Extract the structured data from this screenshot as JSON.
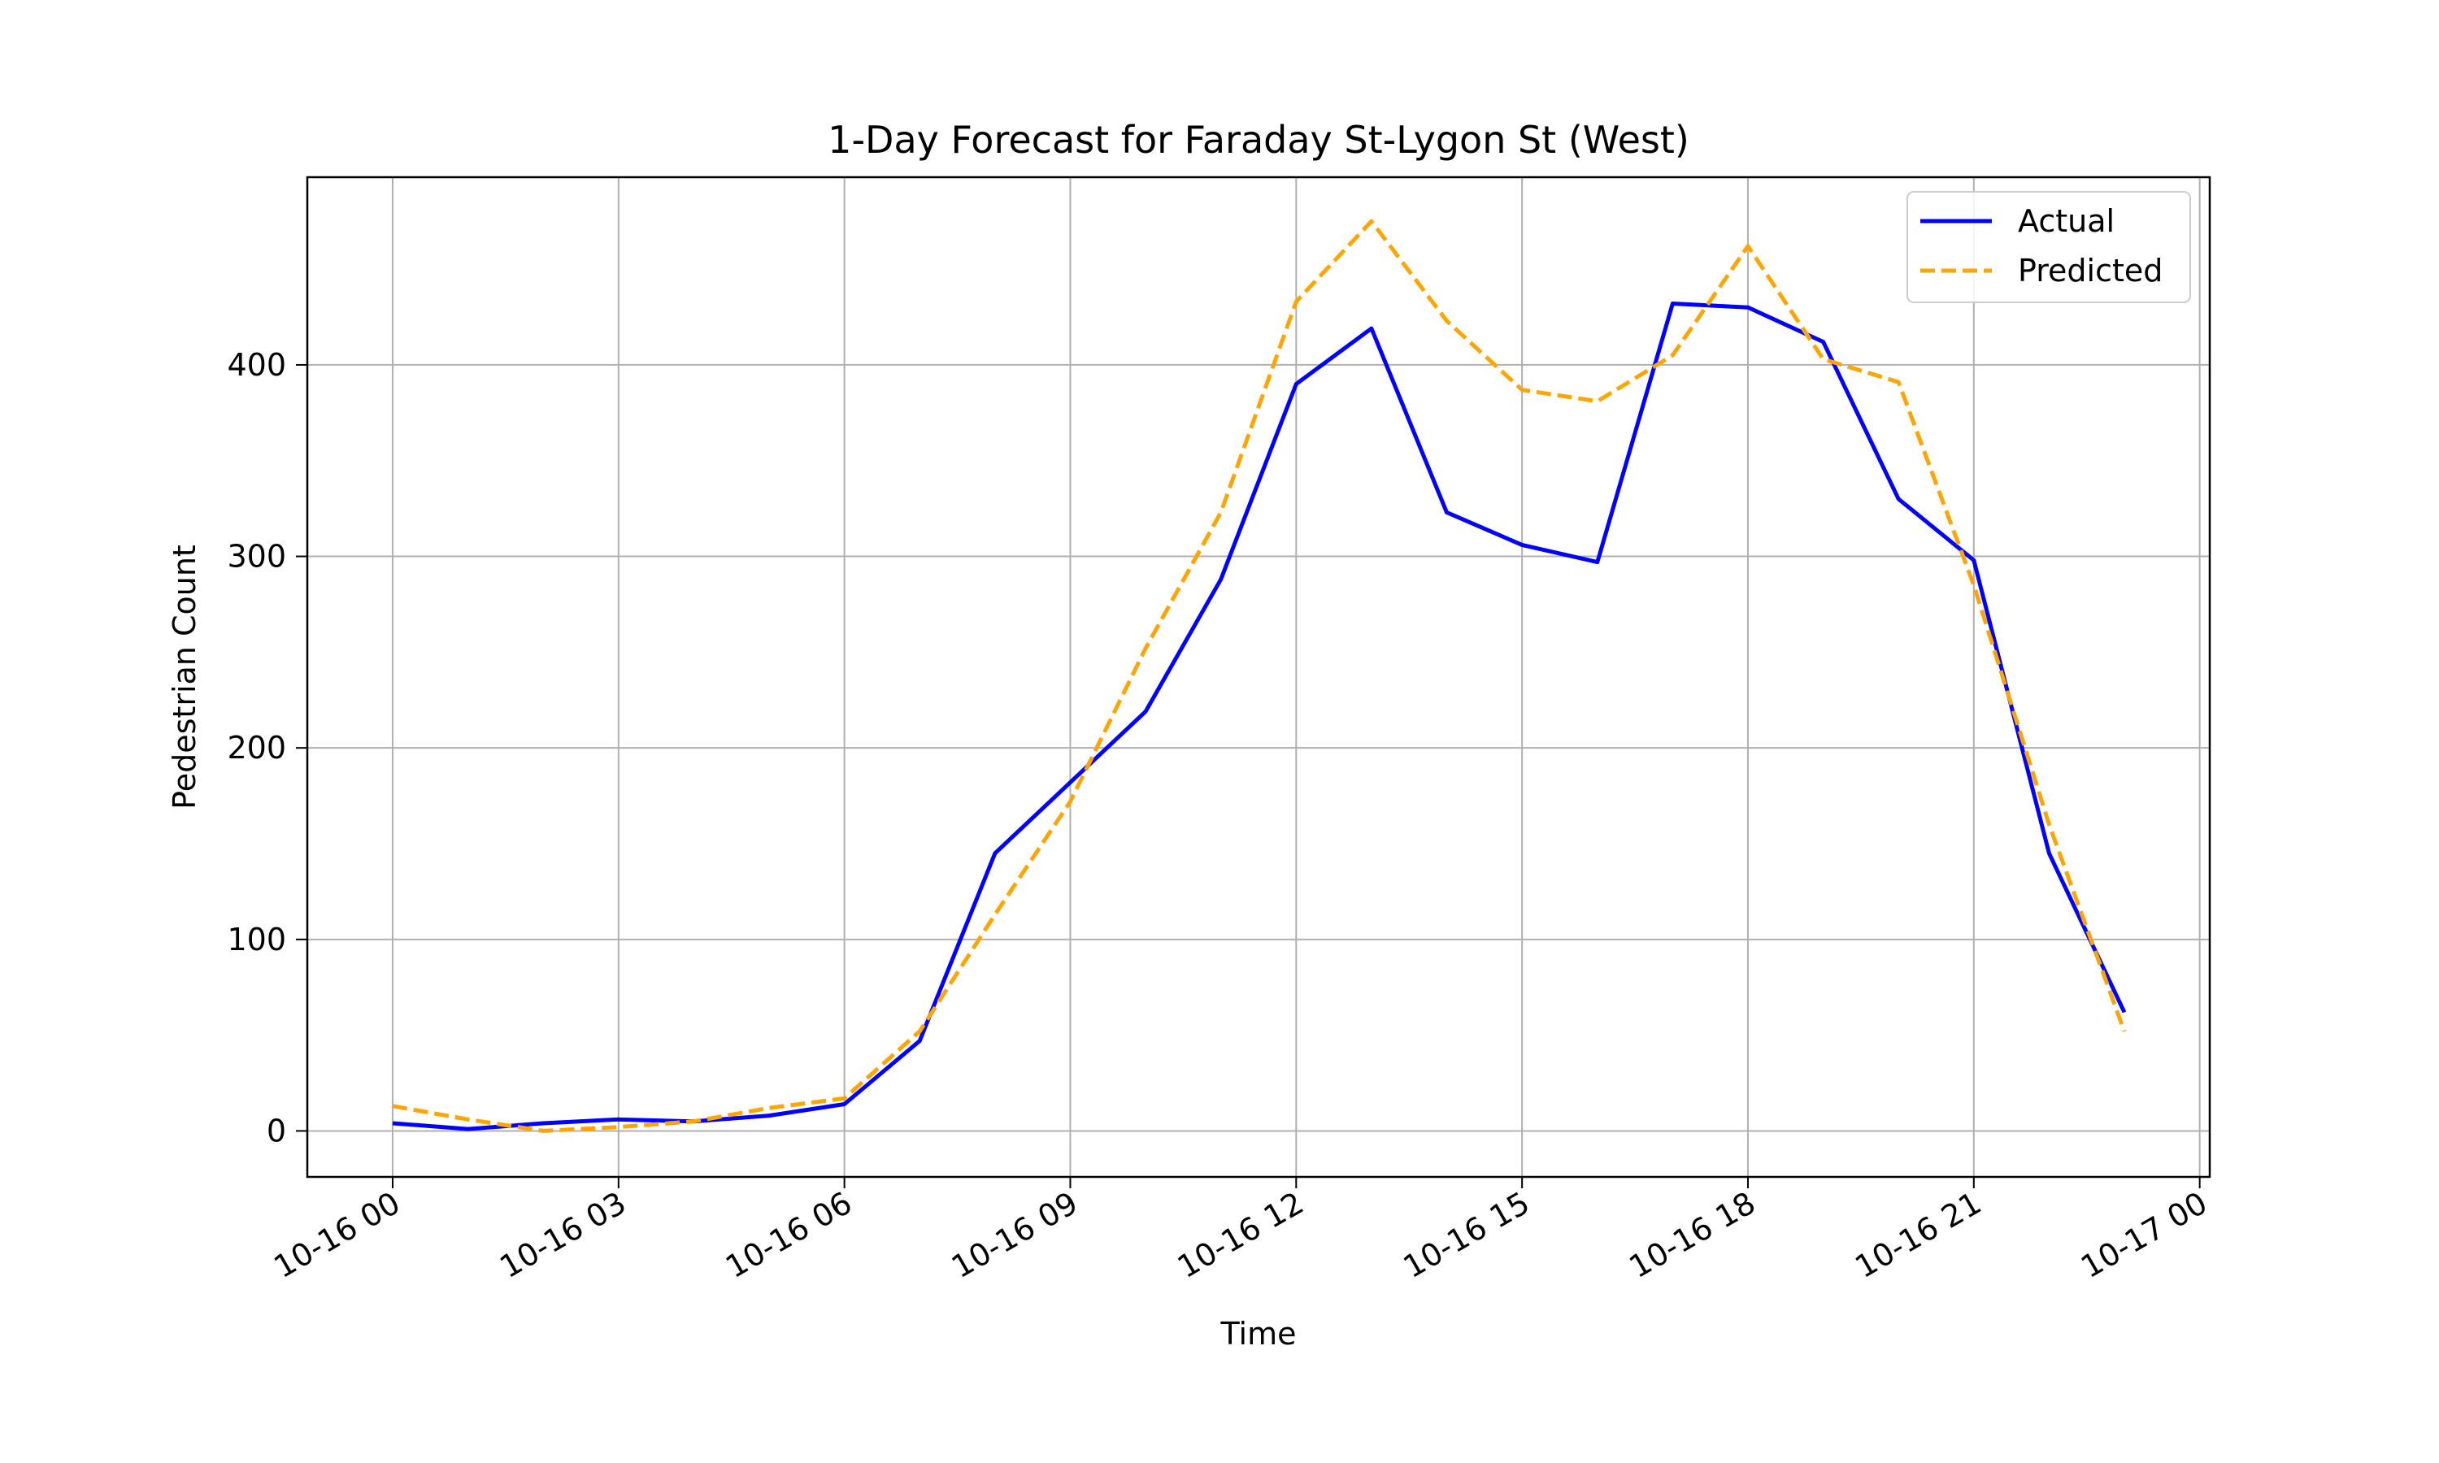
{
  "chart_data": {
    "type": "line",
    "title": "1-Day Forecast for Faraday St-Lygon St (West)",
    "xlabel": "Time",
    "ylabel": "Pedestrian Count",
    "x": [
      "10-16 00",
      "10-16 01",
      "10-16 02",
      "10-16 03",
      "10-16 04",
      "10-16 05",
      "10-16 06",
      "10-16 07",
      "10-16 08",
      "10-16 09",
      "10-16 10",
      "10-16 11",
      "10-16 12",
      "10-16 13",
      "10-16 14",
      "10-16 15",
      "10-16 16",
      "10-16 17",
      "10-16 18",
      "10-16 19",
      "10-16 20",
      "10-16 21",
      "10-16 22",
      "10-16 23"
    ],
    "xlim": [
      "10-15 22:52",
      "10-17 00:08"
    ],
    "ylim": [
      -24,
      498
    ],
    "x_ticks": [
      "10-16 00",
      "10-16 03",
      "10-16 06",
      "10-16 09",
      "10-16 12",
      "10-16 15",
      "10-16 18",
      "10-16 21",
      "10-17 00"
    ],
    "y_ticks": [
      0,
      100,
      200,
      300,
      400
    ],
    "series": [
      {
        "name": "Actual",
        "color": "#0000ff",
        "style": "solid",
        "values": [
          4,
          1,
          4,
          6,
          5,
          8,
          14,
          47,
          145,
          182,
          219,
          288,
          390,
          419,
          323,
          306,
          297,
          432,
          430,
          412,
          330,
          298,
          145,
          62
        ]
      },
      {
        "name": "Predicted",
        "color": "#ffa500",
        "style": "dashed",
        "values": [
          13,
          6,
          0,
          2,
          5,
          12,
          17,
          52,
          113,
          172,
          252,
          323,
          433,
          475,
          423,
          387,
          381,
          405,
          462,
          403,
          391,
          285,
          160,
          52
        ]
      }
    ],
    "grid": true,
    "legend": "top-right"
  }
}
